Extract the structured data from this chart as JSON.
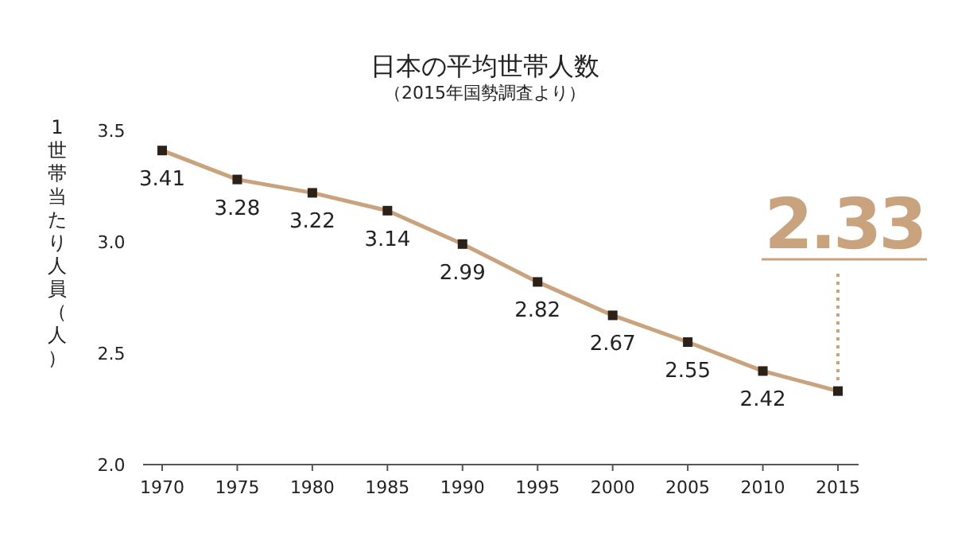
{
  "chart_data": {
    "type": "line",
    "title": "日本の平均世帯人数",
    "subtitle": "（2015年国勢調査より）",
    "ylabel": "1世帯当たり人員（人）",
    "categories": [
      "1970",
      "1975",
      "1980",
      "1985",
      "1990",
      "1995",
      "2000",
      "2005",
      "2010",
      "2015"
    ],
    "series": [
      {
        "color": "#c9a27e",
        "values": [
          3.41,
          3.28,
          3.22,
          3.14,
          2.99,
          2.82,
          2.67,
          2.55,
          2.42,
          2.33
        ]
      }
    ],
    "ylim": [
      2.0,
      3.5
    ],
    "yticks": [
      {
        "value": 2.0,
        "label": "2.0"
      },
      {
        "value": 2.5,
        "label": "2.5"
      },
      {
        "value": 3.0,
        "label": "3.0"
      },
      {
        "value": 3.5,
        "label": "3.5"
      }
    ],
    "marker": "square",
    "data_labels": true
  }
}
